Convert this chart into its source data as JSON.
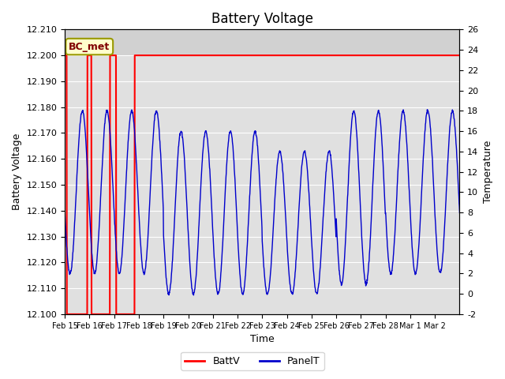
{
  "title": "Battery Voltage",
  "xlabel": "Time",
  "ylabel_left": "Battery Voltage",
  "ylabel_right": "Temperature",
  "ylim_left": [
    12.1,
    12.21
  ],
  "ylim_right": [
    -2,
    26
  ],
  "yticks_left": [
    12.1,
    12.11,
    12.12,
    12.13,
    12.14,
    12.15,
    12.16,
    12.17,
    12.18,
    12.19,
    12.2,
    12.21
  ],
  "yticks_right": [
    -2,
    0,
    2,
    4,
    6,
    8,
    10,
    12,
    14,
    16,
    18,
    20,
    22,
    24,
    26
  ],
  "xtick_labels": [
    "Feb 15",
    "Feb 16",
    "Feb 17",
    "Feb 18",
    "Feb 19",
    "Feb 20",
    "Feb 21",
    "Feb 22",
    "Feb 23",
    "Feb 24",
    "Feb 25",
    "Feb 26",
    "Feb 27",
    "Feb 28",
    "Mar 1",
    "Mar 2"
  ],
  "battv_color": "#ff0000",
  "panelt_color": "#0000cc",
  "background_plot": "#e0e0e0",
  "axhspan_color": "#cccccc",
  "annotation_text": "BC_met",
  "annotation_box_facecolor": "#ffffcc",
  "annotation_box_edgecolor": "#999900",
  "annotation_text_color": "#800000",
  "legend_items": [
    "BattV",
    "PanelT"
  ],
  "total_days": 16,
  "battv_high": 12.2,
  "battv_low": 12.1,
  "temp_min_global": -2,
  "temp_max_global": 26
}
